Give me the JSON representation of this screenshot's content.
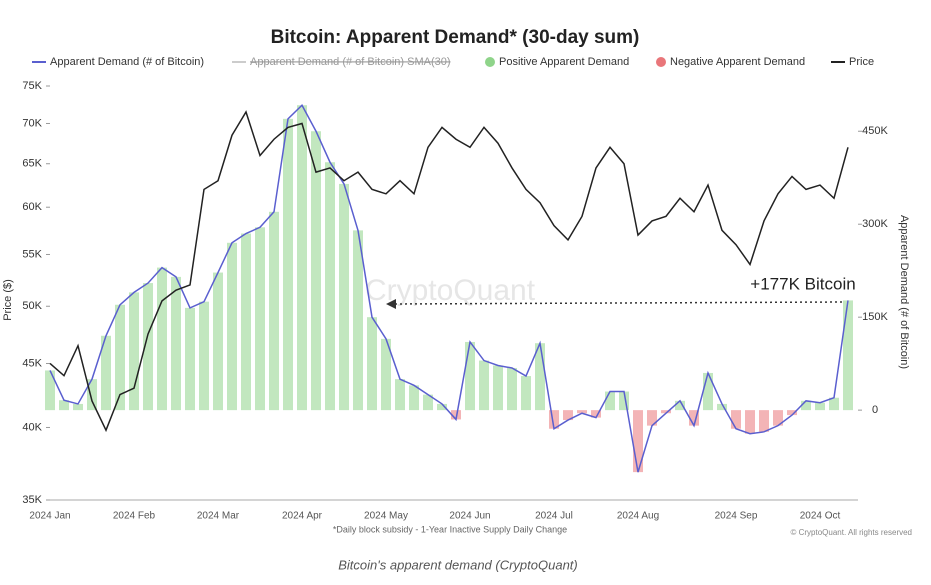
{
  "chart_data": {
    "type": "line",
    "title": "Bitcoin: Apparent Demand* (30-day sum)",
    "y_label": "Price ($)",
    "y2_label": "Apparent Demand (# of Bitcoin)",
    "disabled_legend_entry": "Apparent Demand (# of Bitcoin) SMA(30)",
    "positive_bars": {
      "name": "Positive Apparent Demand",
      "color": "#8fd48a"
    },
    "negative_bars": {
      "name": "Negative Apparent Demand",
      "color": "#e9767a"
    },
    "annotation": "+177K Bitcoin",
    "watermark": "CryptoQuant",
    "footnote": "*Daily block subsidy - 1-Year Inactive Supply Daily Change",
    "copyright": "© CryptoQuant. All rights reserved",
    "caption": "Bitcoin's apparent demand (CryptoQuant)",
    "categories": [
      "2024 Jan",
      null,
      null,
      null,
      null,
      null,
      "2024 Feb",
      null,
      null,
      null,
      null,
      null,
      "2024 Mar",
      null,
      null,
      null,
      null,
      null,
      "2024 Apr",
      null,
      null,
      null,
      null,
      null,
      "2024 May",
      null,
      null,
      null,
      null,
      null,
      "2024 Jun",
      null,
      null,
      null,
      null,
      null,
      "2024 Jul",
      null,
      null,
      null,
      null,
      null,
      "2024 Aug",
      null,
      null,
      null,
      null,
      null,
      null,
      "2024 Sep",
      null,
      null,
      null,
      null,
      null,
      "2024 Oct",
      null,
      null
    ],
    "series": [
      {
        "name": "Apparent Demand (# of Bitcoin)",
        "color": "#5a5fcf",
        "axis": "y2",
        "values": [
          64000,
          16000,
          10000,
          50000,
          120000,
          170000,
          190000,
          205000,
          230000,
          215000,
          165000,
          175000,
          222000,
          270000,
          285000,
          295000,
          320000,
          470000,
          492000,
          450000,
          400000,
          365000,
          290000,
          150000,
          115000,
          50000,
          40000,
          25000,
          10000,
          -15000,
          110000,
          80000,
          72000,
          68000,
          55000,
          108000,
          -30000,
          -16000,
          -5000,
          -12000,
          30000,
          30000,
          -100000,
          -25000,
          -5000,
          15000,
          -25000,
          60000,
          10000,
          -30000,
          -38000,
          -35000,
          -25000,
          -8000,
          15000,
          12000,
          20000,
          177000
        ]
      },
      {
        "name": "Price",
        "color": "#222222",
        "values": [
          45000,
          44000,
          46500,
          42000,
          39800,
          42500,
          43000,
          47500,
          50500,
          51500,
          52000,
          62000,
          63000,
          68500,
          71500,
          66000,
          68000,
          69500,
          70000,
          64000,
          64500,
          63000,
          64000,
          62000,
          61500,
          63000,
          61500,
          67000,
          69500,
          68000,
          67000,
          69500,
          67500,
          64500,
          62000,
          60500,
          58000,
          56500,
          59000,
          64500,
          67000,
          65000,
          57000,
          58500,
          59000,
          61000,
          59500,
          62500,
          57500,
          56000,
          54000,
          58500,
          61500,
          63500,
          62000,
          62500,
          61000,
          67000
        ]
      }
    ],
    "ylim": [
      35000,
      75000
    ],
    "log_y": true,
    "yticks": [
      {
        "value": 35000,
        "label": "35K"
      },
      {
        "value": 40000,
        "label": "40K"
      },
      {
        "value": 45000,
        "label": "45K"
      },
      {
        "value": 50000,
        "label": "50K"
      },
      {
        "value": 55000,
        "label": "55K"
      },
      {
        "value": 60000,
        "label": "60K"
      },
      {
        "value": 65000,
        "label": "65K"
      },
      {
        "value": 70000,
        "label": "70K"
      },
      {
        "value": 75000,
        "label": "75K"
      }
    ],
    "y2lim": [
      -145000,
      523000
    ],
    "y2ticks": [
      0,
      {
        "value": 150000,
        "label": "150K"
      },
      {
        "value": 300000,
        "label": "300K"
      },
      {
        "value": 450000,
        "label": "450K"
      }
    ]
  }
}
